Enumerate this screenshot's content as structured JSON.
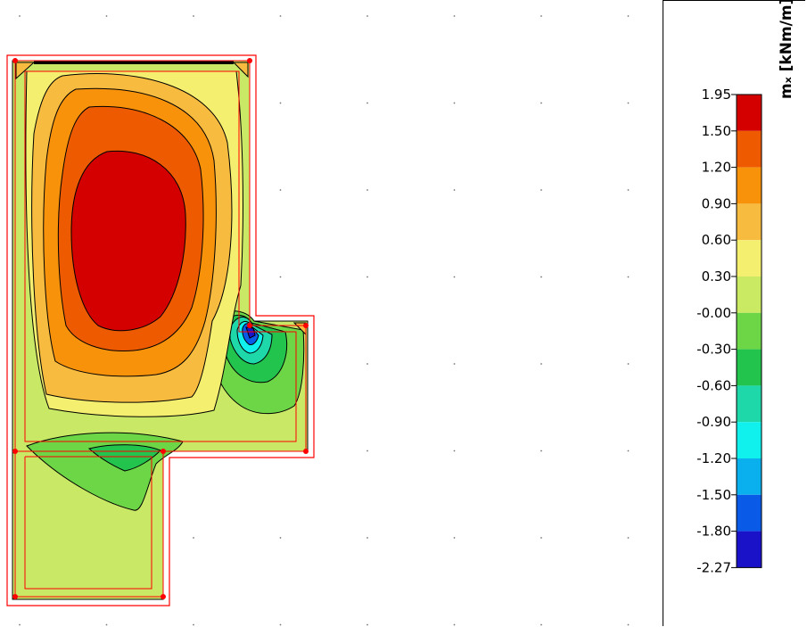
{
  "legend": {
    "unit": "mₓ [kNm/m]",
    "ticks": [
      "1.95",
      "1.50",
      "1.20",
      "0.90",
      "0.60",
      "0.30",
      "-0.00",
      "-0.30",
      "-0.60",
      "-0.90",
      "-1.20",
      "-1.50",
      "-1.80",
      "-2.27"
    ],
    "colors": [
      "#d40000",
      "#ee5a00",
      "#f7920a",
      "#f7bb40",
      "#f5ef70",
      "#c9ea62",
      "#6cd646",
      "#22c44e",
      "#1fd8aa",
      "#10f0ec",
      "#0ab0ee",
      "#0a5ae8",
      "#1a12c8"
    ]
  },
  "plate_colors": {
    "background": "#c8e866",
    "outline": "#ff0000",
    "contour": "#000000"
  }
}
